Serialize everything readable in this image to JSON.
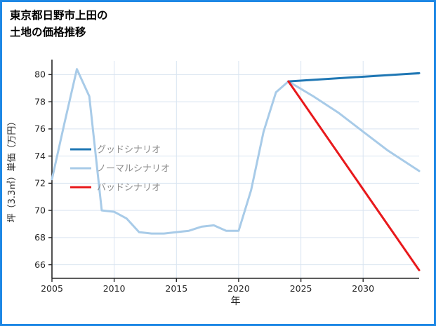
{
  "title": {
    "line1": "東京都日野市上田の",
    "line2": "土地の価格推移"
  },
  "colors": {
    "page_border": "#1e88e5",
    "grid": "#d9e4f1",
    "axis": "#262626",
    "tick_label": "#262626",
    "legend_text": "#8c8c8c"
  },
  "chart_data": {
    "type": "line",
    "title": "東京都日野市上田の土地の価格推移",
    "xlabel": "年",
    "ylabel": "坪（3.3㎡）単価（万円）",
    "xlim": [
      2005,
      2034.5
    ],
    "ylim": [
      65,
      81
    ],
    "xticks": [
      2005,
      2010,
      2015,
      2020,
      2025,
      2030
    ],
    "yticks": [
      66,
      68,
      70,
      72,
      74,
      76,
      78,
      80
    ],
    "grid": true,
    "legend_position": "left-middle",
    "series": [
      {
        "key": "good-scenario",
        "name": "グッドシナリオ",
        "color": "#1f77b4",
        "width": 3,
        "x": [
          2024,
          2034.5
        ],
        "y": [
          79.5,
          80.1
        ]
      },
      {
        "key": "normal-scenario",
        "name": "ノーマルシナリオ",
        "color": "#a8cbe8",
        "width": 3,
        "x": [
          2005,
          2006,
          2007,
          2008,
          2009,
          2010,
          2011,
          2012,
          2013,
          2014,
          2015,
          2016,
          2017,
          2018,
          2019,
          2020,
          2021,
          2022,
          2023,
          2024,
          2026,
          2028,
          2030,
          2032,
          2034.5
        ],
        "y": [
          72.3,
          76.4,
          80.4,
          78.4,
          70.0,
          69.9,
          69.4,
          68.4,
          68.3,
          68.3,
          68.4,
          68.5,
          68.8,
          68.9,
          68.5,
          68.5,
          71.5,
          75.8,
          78.7,
          79.5,
          78.4,
          77.2,
          75.8,
          74.4,
          72.9
        ]
      },
      {
        "key": "bad-scenario",
        "name": "バッドシナリオ",
        "color": "#e8191c",
        "width": 3,
        "x": [
          2024,
          2034.5
        ],
        "y": [
          79.5,
          65.6
        ]
      }
    ]
  }
}
